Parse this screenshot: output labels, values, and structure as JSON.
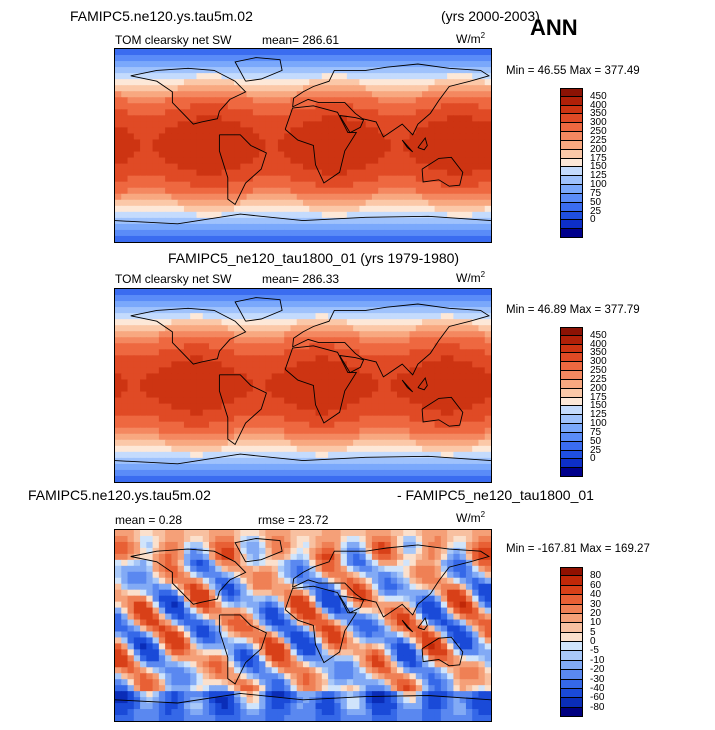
{
  "header": {
    "case1": "FAMIPC5.ne120.ys.tau5m.02",
    "years1": "(yrs 2000-2003)",
    "season": "ANN",
    "case2_title": "FAMIPC5_ne120_tau1800_01 (yrs 1979-1980)",
    "diff_left": "FAMIPC5.ne120.ys.tau5m.02",
    "diff_right": "- FAMIPC5_ne120_tau1800_01"
  },
  "colors": {
    "abs_scale": [
      "#00008c",
      "#0d2fc8",
      "#1f4fe0",
      "#3a6cf0",
      "#5a8cf8",
      "#7aa8fb",
      "#9fc2fc",
      "#c4dbfd",
      "#fde8d8",
      "#fbc8a8",
      "#f8a880",
      "#f48860",
      "#ee6840",
      "#e04a25",
      "#cd3412",
      "#b02008",
      "#8c1204"
    ],
    "diff_scale": [
      "#000080",
      "#0a2db8",
      "#1a4ad8",
      "#3568e8",
      "#5a88f0",
      "#82aaf5",
      "#a8c8f8",
      "#d0e4fb",
      "#fbe0cc",
      "#f8c0a0",
      "#f5a078",
      "#ef8055",
      "#e86035",
      "#d84018",
      "#c02808",
      "#901000"
    ]
  },
  "chart_data": [
    {
      "type": "heatmap",
      "panel": "top",
      "variable": "TOM clearsky net SW",
      "mean_text": "mean=  286.61",
      "units_base": "W/m",
      "units_exp": "2",
      "min_max_text": "Min =   46.55  Max = 377.49",
      "min": 46.55,
      "max": 377.49,
      "mean": 286.61,
      "colorbar_levels": [
        "450",
        "400",
        "350",
        "300",
        "250",
        "225",
        "200",
        "175",
        "150",
        "125",
        "100",
        "75",
        "50",
        "25",
        "0"
      ]
    },
    {
      "type": "heatmap",
      "panel": "middle",
      "variable": "TOM clearsky net SW",
      "mean_text": "mean=  286.33",
      "units_base": "W/m",
      "units_exp": "2",
      "min_max_text": "Min =   46.89  Max = 377.79",
      "min": 46.89,
      "max": 377.79,
      "mean": 286.33,
      "colorbar_levels": [
        "450",
        "400",
        "350",
        "300",
        "250",
        "225",
        "200",
        "175",
        "150",
        "125",
        "100",
        "75",
        "50",
        "25",
        "0"
      ]
    },
    {
      "type": "heatmap",
      "panel": "difference",
      "mean_text": "mean =     0.28",
      "rmse_text": "rmse =   23.72",
      "units_base": "W/m",
      "units_exp": "2",
      "min_max_text": "Min = -167.81  Max = 169.27",
      "min": -167.81,
      "max": 169.27,
      "mean": 0.28,
      "rmse": 23.72,
      "colorbar_levels": [
        "80",
        "60",
        "40",
        "30",
        "20",
        "10",
        "5",
        "0",
        "-5",
        "-10",
        "-20",
        "-30",
        "-40",
        "-60",
        "-80"
      ]
    }
  ]
}
